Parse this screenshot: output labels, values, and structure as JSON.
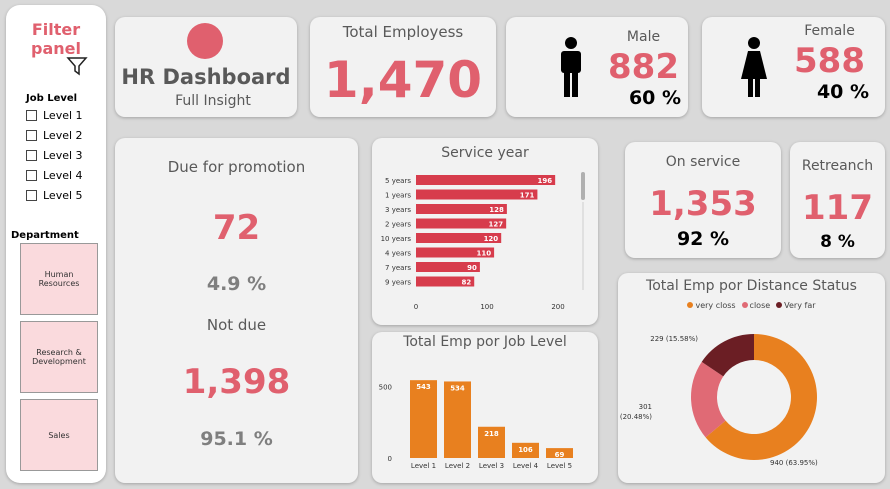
{
  "filter": {
    "title": "Filter panel",
    "job_level_heading": "Job Level",
    "job_levels": [
      "Level 1",
      "Level 2",
      "Level 3",
      "Level 4",
      "Level 5"
    ],
    "department_heading": "Department",
    "departments": [
      "Human Resources",
      "Research & Development",
      "Sales"
    ]
  },
  "header": {
    "title": "HR Dashboard",
    "subtitle": "Full Insight"
  },
  "total": {
    "label": "Total Employess",
    "value": "1,470"
  },
  "male": {
    "label": "Male",
    "value": "882",
    "pct": "60 %"
  },
  "female": {
    "label": "Female",
    "value": "588",
    "pct": "40 %"
  },
  "promotion": {
    "due_label": "Due for promotion",
    "due_value": "72",
    "due_pct": "4.9 %",
    "not_label": "Not due",
    "not_value": "1,398",
    "not_pct": "95.1 %"
  },
  "on_service": {
    "label": "On service",
    "value": "1,353",
    "pct": "92 %"
  },
  "retreanch": {
    "label": "Retreanch",
    "value": "117",
    "pct": "8 %"
  },
  "colors": {
    "accent": "#e0606e",
    "bar_red": "#d73c4c",
    "bar_orange": "#e8801f",
    "donut_close": "#e06a75",
    "donut_far": "#6b1e24"
  },
  "chart_data": [
    {
      "type": "bar",
      "title": "Service year",
      "orientation": "horizontal",
      "categories": [
        "5 years",
        "1 years",
        "3 years",
        "2 years",
        "10 years",
        "4 years",
        "7 years",
        "9 years"
      ],
      "values": [
        196,
        171,
        128,
        127,
        120,
        110,
        90,
        82
      ],
      "xlim": [
        0,
        200
      ],
      "ticks": [
        "0",
        "100",
        "200"
      ]
    },
    {
      "type": "bar",
      "title": "Total Emp por Job Level",
      "categories": [
        "Level 1",
        "Level 2",
        "Level 3",
        "Level 4",
        "Level 5"
      ],
      "values": [
        543,
        534,
        218,
        106,
        69
      ],
      "ylim": [
        0,
        600
      ],
      "ticks": [
        "0",
        "500"
      ]
    },
    {
      "type": "pie",
      "title": "Total Emp por Distance Status",
      "legend": [
        "very closs",
        "close",
        "Very far"
      ],
      "values": [
        940,
        301,
        229
      ],
      "labels": [
        "940 (63.95%)",
        "301 (20.48%)",
        "229 (15.58%)"
      ]
    }
  ]
}
